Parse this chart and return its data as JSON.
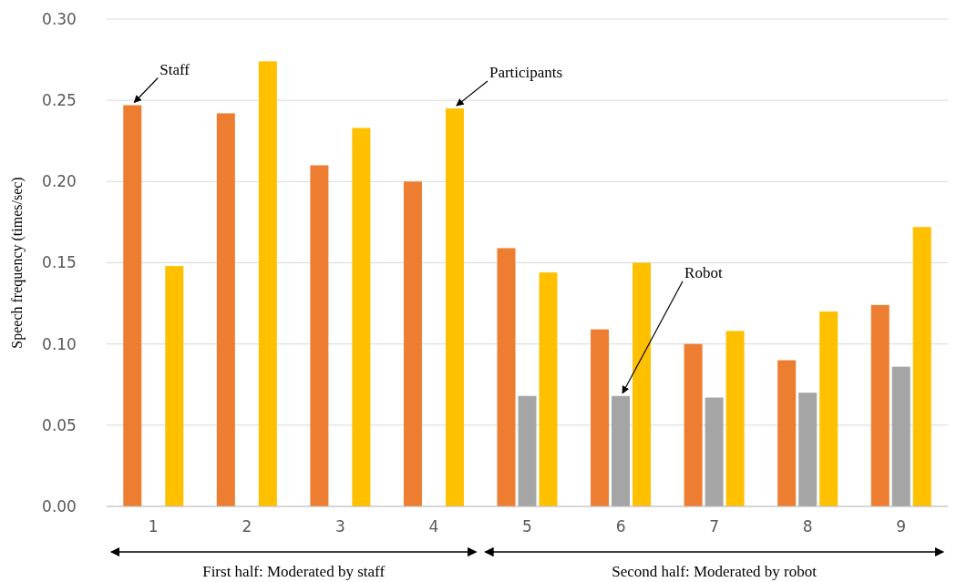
{
  "chart_data": {
    "type": "bar",
    "ylabel": "Speech frequency (times/sec)",
    "categories": [
      "1",
      "2",
      "3",
      "4",
      "5",
      "6",
      "7",
      "8",
      "9"
    ],
    "series": [
      {
        "name": "Staff",
        "color": "#ed7d31",
        "values": [
          0.247,
          0.242,
          0.21,
          0.2,
          0.159,
          0.109,
          0.1,
          0.09,
          0.124
        ]
      },
      {
        "name": "Robot",
        "color": "#a5a5a5",
        "values": [
          null,
          null,
          null,
          null,
          0.068,
          0.068,
          0.067,
          0.07,
          0.086
        ]
      },
      {
        "name": "Participants",
        "color": "#ffc000",
        "values": [
          0.148,
          0.274,
          0.233,
          0.245,
          0.144,
          0.15,
          0.108,
          0.12,
          0.172
        ]
      }
    ],
    "ylim": [
      0,
      0.3
    ],
    "yticks": [
      {
        "value": 0,
        "label": "0.00"
      },
      {
        "value": 0.05,
        "label": "0.05"
      },
      {
        "value": 0.1,
        "label": "0.10"
      },
      {
        "value": 0.15,
        "label": "0.15"
      },
      {
        "value": 0.2,
        "label": "0.20"
      },
      {
        "value": 0.25,
        "label": "0.25"
      },
      {
        "value": 0.3,
        "label": "0.30"
      }
    ],
    "grid": "y",
    "annotations": [
      "First half: Moderated by staff",
      "Second half: Moderated by robot"
    ]
  }
}
